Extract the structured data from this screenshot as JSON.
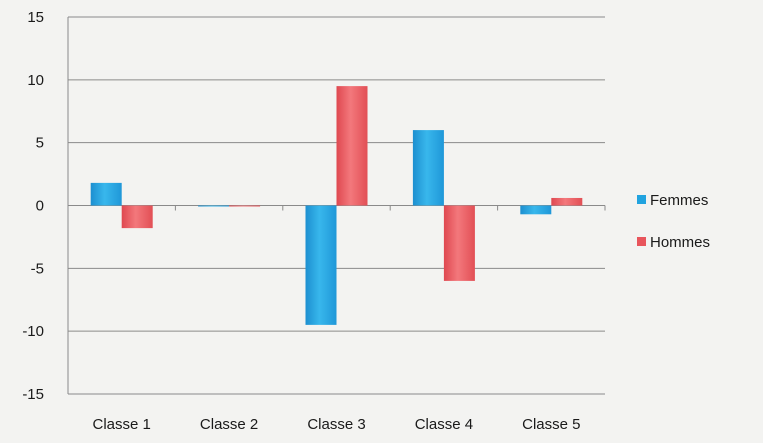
{
  "chart_data": {
    "type": "bar",
    "categories": [
      "Classe 1",
      "Classe 2",
      "Classe 3",
      "Classe 4",
      "Classe 5"
    ],
    "series": [
      {
        "name": "Femmes",
        "color": "#21a3df",
        "values": [
          1.8,
          0,
          -9.5,
          6,
          -0.7
        ]
      },
      {
        "name": "Hommes",
        "color": "#e8555c",
        "values": [
          -1.8,
          0,
          9.5,
          -6,
          0.6
        ]
      }
    ],
    "y_ticks": [
      "15",
      "10",
      "5",
      "0",
      "-5",
      "-10",
      "-15"
    ],
    "ylim": [
      -15,
      15
    ],
    "grid": true,
    "legend_position": "right"
  }
}
